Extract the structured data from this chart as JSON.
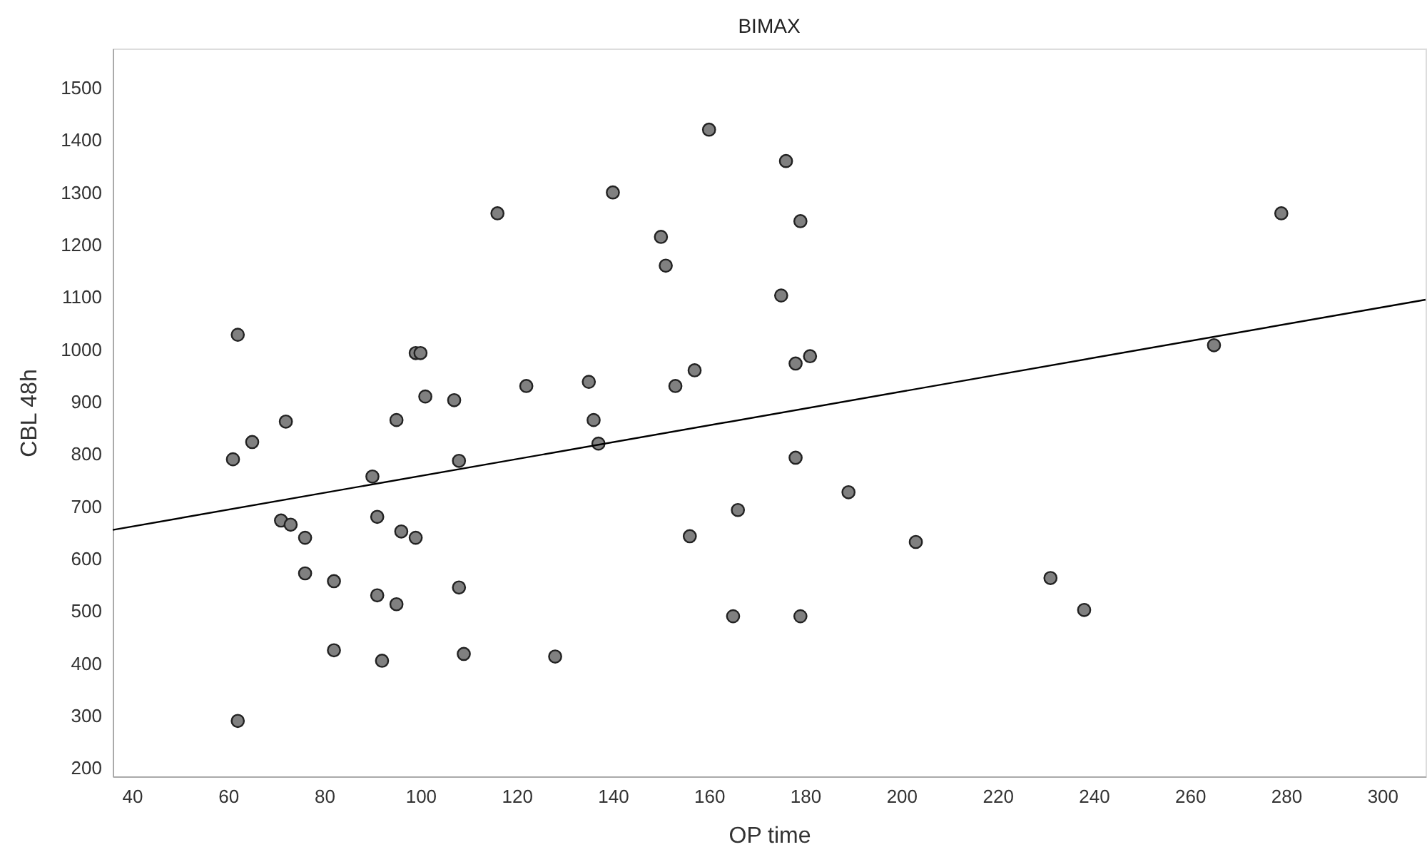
{
  "chart_data": {
    "type": "scatter",
    "title": "BIMAX",
    "xlabel": "OP time",
    "ylabel": "CBL 48h",
    "xlim": [
      36,
      309
    ],
    "ylim": [
      184,
      1575
    ],
    "xticks": [
      40,
      60,
      80,
      100,
      120,
      140,
      160,
      180,
      200,
      220,
      240,
      260,
      280,
      300
    ],
    "yticks": [
      200,
      300,
      400,
      500,
      600,
      700,
      800,
      900,
      1000,
      1100,
      1200,
      1300,
      1400,
      1500
    ],
    "grid": false,
    "series": [
      {
        "color": "#808080",
        "marker": "circle",
        "x": [
          61,
          62,
          62,
          65,
          71,
          72,
          73,
          76,
          76,
          82,
          82,
          90,
          91,
          91,
          92,
          95,
          95,
          96,
          99,
          99,
          100,
          101,
          107,
          108,
          108,
          109,
          116,
          122,
          128,
          135,
          136,
          137,
          140,
          150,
          151,
          153,
          156,
          157,
          160,
          165,
          166,
          175,
          176,
          178,
          178,
          179,
          179,
          181,
          189,
          203,
          231,
          238,
          265,
          279
        ],
        "values": [
          790,
          1028,
          290,
          823,
          673,
          862,
          665,
          640,
          572,
          557,
          425,
          757,
          680,
          530,
          405,
          865,
          513,
          652,
          993,
          640,
          993,
          910,
          903,
          787,
          545,
          418,
          1260,
          930,
          413,
          938,
          865,
          820,
          1300,
          1215,
          1160,
          930,
          643,
          960,
          1420,
          490,
          693,
          1103,
          1360,
          973,
          793,
          1245,
          490,
          987,
          727,
          632,
          563,
          502,
          1008,
          1260
        ]
      },
      {
        "type": "line",
        "color": "#000000",
        "line_style": "solid",
        "marker": "none",
        "x": [
          36,
          309
        ],
        "values": [
          655,
          1095
        ]
      }
    ]
  }
}
